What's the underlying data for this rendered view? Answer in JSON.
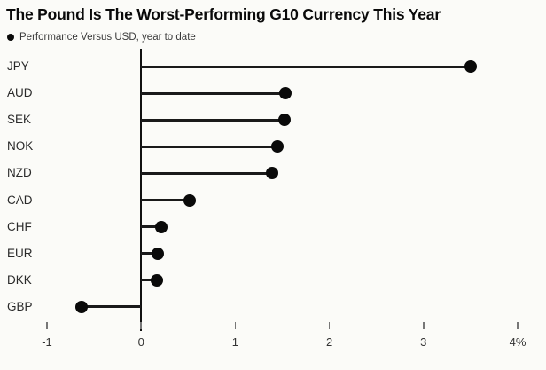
{
  "chart_data": {
    "type": "bar",
    "style": "lollipop-horizontal",
    "title": "The Pound Is The Worst-Performing G10 Currency This Year",
    "legend": "Performance Versus USD, year to date",
    "categories": [
      "JPY",
      "AUD",
      "SEK",
      "NOK",
      "NZD",
      "CAD",
      "CHF",
      "EUR",
      "DKK",
      "GBP"
    ],
    "values": [
      3.5,
      1.53,
      1.52,
      1.45,
      1.39,
      0.52,
      0.21,
      0.18,
      0.17,
      -0.63
    ],
    "unit": "%",
    "xlabel": "",
    "ylabel": "",
    "xlim": [
      -1,
      4
    ],
    "baseline": 0,
    "xticks": [
      {
        "value": -1,
        "label": "-1"
      },
      {
        "value": 0,
        "label": "0"
      },
      {
        "value": 1,
        "label": "1"
      },
      {
        "value": 2,
        "label": "2"
      },
      {
        "value": 3,
        "label": "3"
      },
      {
        "value": 4,
        "label": "4%"
      }
    ],
    "grid": false,
    "legend_position": "top-left",
    "colors": {
      "dot": "#0a0a0a",
      "stem": "#1a1a1a",
      "axis": "#111111",
      "tick": "#777777",
      "background": "#fbfbf8"
    }
  }
}
